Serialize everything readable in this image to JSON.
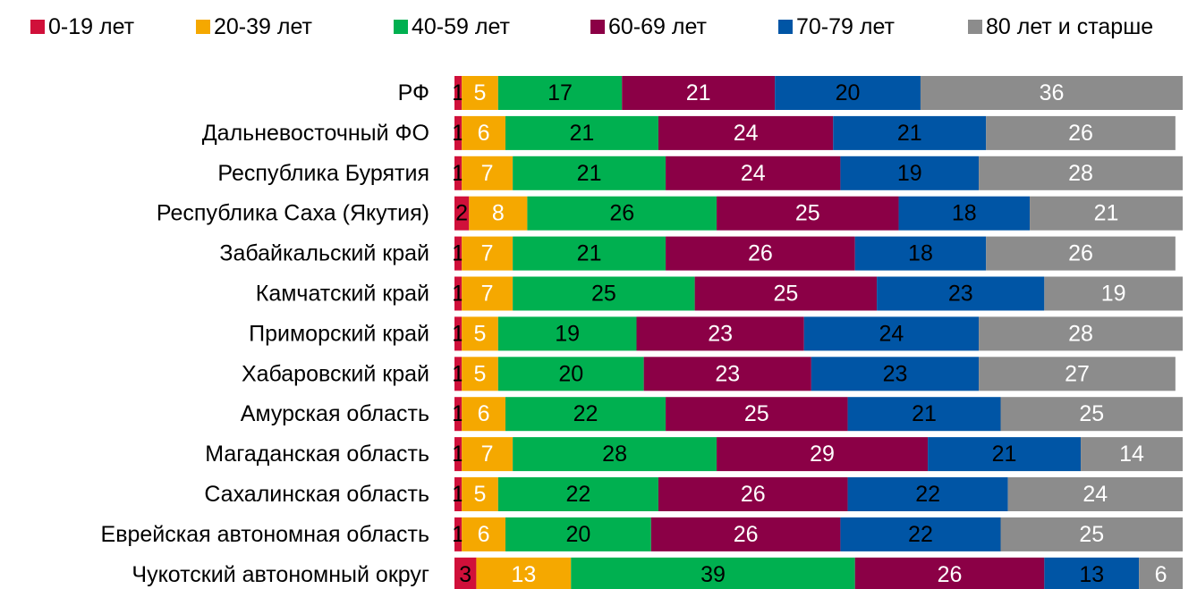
{
  "chart_data": {
    "type": "stacked_bar_horizontal",
    "categories": [
      "РФ",
      "Дальневосточный ФО",
      "Республика Бурятия",
      "Республика Саха (Якутия)",
      "Забайкальский край",
      "Камчатский край",
      "Приморский край",
      "Хабаровский край",
      "Амурская область",
      "Магаданская область",
      "Сахалинская область",
      "Еврейская автономная область",
      "Чукотский автономный округ"
    ],
    "series": [
      {
        "name": "0-19 лет",
        "color": "#d0103a",
        "label_color": "#000000",
        "values": [
          1,
          1,
          1,
          2,
          1,
          1,
          1,
          1,
          1,
          1,
          1,
          1,
          3
        ]
      },
      {
        "name": "20-39 лет",
        "color": "#f5a800",
        "label_color": "#ffffff",
        "values": [
          5,
          6,
          7,
          8,
          7,
          7,
          5,
          5,
          6,
          7,
          5,
          6,
          13
        ]
      },
      {
        "name": "40-59 лет",
        "color": "#00b050",
        "label_color": "#000000",
        "values": [
          17,
          21,
          21,
          26,
          21,
          25,
          19,
          20,
          22,
          28,
          22,
          20,
          39
        ]
      },
      {
        "name": "60-69 лет",
        "color": "#8b0046",
        "label_color": "#ffffff",
        "values": [
          21,
          24,
          24,
          25,
          26,
          25,
          23,
          23,
          25,
          29,
          26,
          26,
          26
        ]
      },
      {
        "name": "70-79 лет",
        "color": "#0055a5",
        "label_color": "#000000",
        "values": [
          20,
          21,
          19,
          18,
          18,
          23,
          24,
          23,
          21,
          21,
          22,
          22,
          13
        ]
      },
      {
        "name": "80 лет и старше",
        "color": "#8c8c8c",
        "label_color": "#ffffff",
        "values": [
          36,
          26,
          28,
          21,
          26,
          19,
          28,
          27,
          25,
          14,
          24,
          25,
          6
        ]
      }
    ],
    "xlim": [
      0,
      100
    ],
    "legend": "top"
  }
}
